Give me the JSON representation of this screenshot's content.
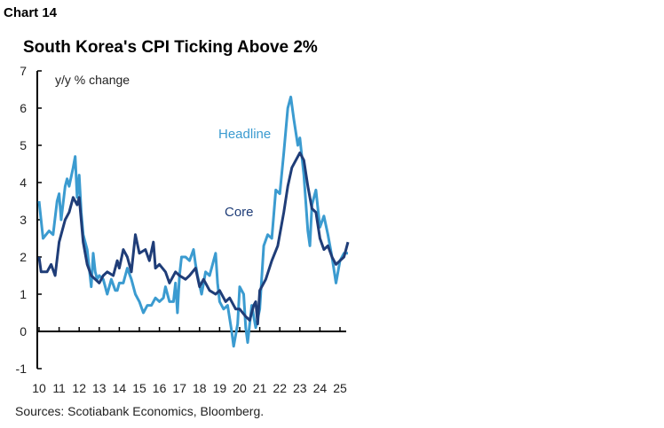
{
  "header": {
    "chart_label": "Chart 14"
  },
  "source": "Sources: Scotiabank Economics, Bloomberg.",
  "colors": {
    "headline": "#3b9bd0",
    "core": "#1f3d78",
    "axis": "#000000"
  },
  "chart_data": {
    "type": "line",
    "title": "South Korea's CPI Ticking Above 2%",
    "ylabel": "y/y % change",
    "xlabel": "",
    "ylim": [
      -1,
      7
    ],
    "xlim": [
      2010,
      2025.4
    ],
    "yticks": [
      "-1",
      "0",
      "1",
      "2",
      "3",
      "4",
      "5",
      "6",
      "7"
    ],
    "xticks": [
      "10",
      "11",
      "12",
      "13",
      "14",
      "15",
      "16",
      "17",
      "18",
      "19",
      "20",
      "21",
      "22",
      "23",
      "24",
      "25"
    ],
    "grid": false,
    "legend": "inline labels",
    "series": [
      {
        "name": "Headline",
        "x": [
          2010.0,
          2010.2,
          2010.5,
          2010.7,
          2010.9,
          2011.0,
          2011.1,
          2011.3,
          2011.4,
          2011.5,
          2011.7,
          2011.8,
          2011.9,
          2012.0,
          2012.1,
          2012.2,
          2012.4,
          2012.6,
          2012.7,
          2012.8,
          2012.9,
          2013.0,
          2013.2,
          2013.4,
          2013.6,
          2013.8,
          2013.9,
          2014.0,
          2014.2,
          2014.4,
          2014.6,
          2014.8,
          2015.0,
          2015.2,
          2015.4,
          2015.6,
          2015.8,
          2016.0,
          2016.2,
          2016.3,
          2016.5,
          2016.7,
          2016.8,
          2016.9,
          2017.0,
          2017.1,
          2017.3,
          2017.5,
          2017.7,
          2017.8,
          2017.9,
          2018.1,
          2018.3,
          2018.5,
          2018.7,
          2018.8,
          2018.9,
          2019.0,
          2019.2,
          2019.4,
          2019.6,
          2019.7,
          2019.9,
          2020.0,
          2020.2,
          2020.3,
          2020.4,
          2020.6,
          2020.8,
          2021.0,
          2021.2,
          2021.4,
          2021.6,
          2021.8,
          2022.0,
          2022.2,
          2022.4,
          2022.55,
          2022.7,
          2022.9,
          2023.0,
          2023.2,
          2023.4,
          2023.5,
          2023.6,
          2023.8,
          2023.9,
          2024.0,
          2024.2,
          2024.4,
          2024.6,
          2024.8,
          2025.0,
          2025.2,
          2025.4
        ],
        "values": [
          3.5,
          2.5,
          2.7,
          2.6,
          3.5,
          3.7,
          3.0,
          3.9,
          4.1,
          3.9,
          4.4,
          4.7,
          3.6,
          4.2,
          3.2,
          2.6,
          2.2,
          1.2,
          2.1,
          1.6,
          1.4,
          1.5,
          1.4,
          1.0,
          1.4,
          1.1,
          1.1,
          1.3,
          1.3,
          1.7,
          1.4,
          1.0,
          0.8,
          0.5,
          0.7,
          0.7,
          0.9,
          0.8,
          0.9,
          1.2,
          0.8,
          0.8,
          1.3,
          0.5,
          1.5,
          2.0,
          2.0,
          1.9,
          2.2,
          1.8,
          1.5,
          1.0,
          1.6,
          1.5,
          1.9,
          2.1,
          1.3,
          0.8,
          0.6,
          0.7,
          0.0,
          -0.4,
          0.2,
          1.2,
          1.0,
          0.1,
          -0.3,
          0.7,
          0.1,
          0.6,
          2.3,
          2.6,
          2.5,
          3.8,
          3.7,
          4.8,
          6.0,
          6.3,
          5.7,
          5.0,
          5.2,
          4.2,
          2.7,
          2.3,
          3.4,
          3.8,
          3.3,
          2.8,
          3.1,
          2.6,
          2.0,
          1.3,
          1.9,
          2.1,
          2.1
        ]
      },
      {
        "name": "Core",
        "x": [
          2010.0,
          2010.1,
          2010.4,
          2010.6,
          2010.8,
          2011.0,
          2011.3,
          2011.5,
          2011.7,
          2011.9,
          2012.0,
          2012.2,
          2012.4,
          2012.6,
          2012.8,
          2013.0,
          2013.2,
          2013.4,
          2013.7,
          2013.9,
          2014.0,
          2014.2,
          2014.4,
          2014.6,
          2014.8,
          2015.0,
          2015.3,
          2015.5,
          2015.7,
          2015.8,
          2016.0,
          2016.3,
          2016.5,
          2016.8,
          2017.0,
          2017.3,
          2017.5,
          2017.8,
          2018.0,
          2018.2,
          2018.5,
          2018.8,
          2019.0,
          2019.3,
          2019.5,
          2019.8,
          2020.0,
          2020.3,
          2020.5,
          2020.7,
          2020.8,
          2020.9,
          2021.0,
          2021.3,
          2021.6,
          2021.9,
          2022.2,
          2022.4,
          2022.6,
          2022.8,
          2023.0,
          2023.2,
          2023.4,
          2023.6,
          2023.8,
          2024.0,
          2024.2,
          2024.4,
          2024.6,
          2024.8,
          2025.0,
          2025.2,
          2025.4
        ],
        "values": [
          2.0,
          1.6,
          1.6,
          1.8,
          1.5,
          2.4,
          3.0,
          3.2,
          3.6,
          3.4,
          3.6,
          2.4,
          1.8,
          1.5,
          1.4,
          1.3,
          1.5,
          1.6,
          1.5,
          1.9,
          1.7,
          2.2,
          2.0,
          1.6,
          2.6,
          2.1,
          2.2,
          1.9,
          2.4,
          1.7,
          1.8,
          1.6,
          1.3,
          1.6,
          1.5,
          1.4,
          1.5,
          1.7,
          1.2,
          1.4,
          1.1,
          1.0,
          1.1,
          0.8,
          0.9,
          0.6,
          0.6,
          0.4,
          0.3,
          0.7,
          0.8,
          0.2,
          1.1,
          1.4,
          1.9,
          2.3,
          3.2,
          3.9,
          4.4,
          4.6,
          4.8,
          4.6,
          3.9,
          3.3,
          3.2,
          2.5,
          2.2,
          2.3,
          2.0,
          1.8,
          1.9,
          2.0,
          2.4
        ]
      }
    ]
  }
}
